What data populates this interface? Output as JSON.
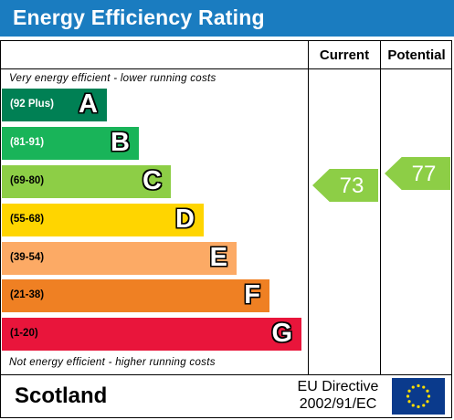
{
  "title": "Energy Efficiency Rating",
  "columns": {
    "current": "Current",
    "potential": "Potential"
  },
  "notes": {
    "top": "Very energy efficient - lower running costs",
    "bottom": "Not energy efficient - higher running costs"
  },
  "bands": [
    {
      "range": "(92 Plus)",
      "letter": "A",
      "color": "#008054",
      "text_color": "#ffffff"
    },
    {
      "range": "(81-91)",
      "letter": "B",
      "color": "#19b459",
      "text_color": "#ffffff"
    },
    {
      "range": "(69-80)",
      "letter": "C",
      "color": "#8dce46",
      "text_color": "#000000"
    },
    {
      "range": "(55-68)",
      "letter": "D",
      "color": "#ffd500",
      "text_color": "#000000"
    },
    {
      "range": "(39-54)",
      "letter": "E",
      "color": "#fcaa65",
      "text_color": "#000000"
    },
    {
      "range": "(21-38)",
      "letter": "F",
      "color": "#ef8023",
      "text_color": "#000000"
    },
    {
      "range": "(1-20)",
      "letter": "G",
      "color": "#e9153b",
      "text_color": "#000000"
    }
  ],
  "ratings": {
    "current": {
      "value": "73",
      "band": "C",
      "color": "#8dce46"
    },
    "potential": {
      "value": "77",
      "band": "C",
      "color": "#8dce46"
    }
  },
  "footer": {
    "country": "Scotland",
    "directive_line1": "EU Directive",
    "directive_line2": "2002/91/EC",
    "flag_icon": "eu-flag-icon"
  }
}
